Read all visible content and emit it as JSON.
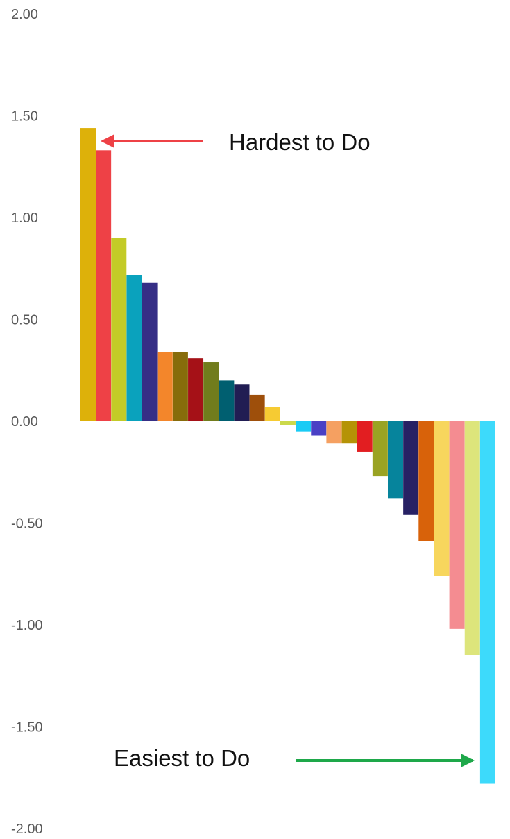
{
  "chart_data": {
    "type": "bar",
    "title": "",
    "xlabel": "",
    "ylabel": "",
    "ylim": [
      -2.0,
      2.0
    ],
    "y_ticks": [
      "2.00",
      "1.50",
      "1.00",
      "0.50",
      "0.00",
      "-0.50",
      "-1.00",
      "-1.50",
      "-2.00"
    ],
    "y_tick_values": [
      2.0,
      1.5,
      1.0,
      0.5,
      0.0,
      -0.5,
      -1.0,
      -1.5,
      -2.0
    ],
    "grid": false,
    "legend": "none",
    "values": [
      1.44,
      1.33,
      0.9,
      0.72,
      0.68,
      0.34,
      0.34,
      0.31,
      0.29,
      0.2,
      0.18,
      0.13,
      0.07,
      -0.02,
      -0.05,
      -0.07,
      -0.11,
      -0.11,
      -0.15,
      -0.27,
      -0.38,
      -0.46,
      -0.59,
      -0.76,
      -1.02,
      -1.15,
      -1.78
    ],
    "colors": [
      "#DDB10A",
      "#EE4146",
      "#C3CB27",
      "#0AA2BD",
      "#362F86",
      "#F3862B",
      "#876C0B",
      "#A51117",
      "#717C1C",
      "#005F70",
      "#211D53",
      "#9E4F0B",
      "#F6CB33",
      "#CBD94B",
      "#1ACBF5",
      "#4A40C5",
      "#F5A061",
      "#B59306",
      "#E21E21",
      "#9AA323",
      "#06849C",
      "#272164",
      "#D8620A",
      "#F7D65D",
      "#F48C91",
      "#DDE57B",
      "#3DDAFB"
    ],
    "annotations": [
      {
        "text": "Hardest to Do",
        "arrow_color": "#EE4146",
        "points_to_bar": 1
      },
      {
        "text": "Easiest to Do",
        "arrow_color": "#1EA84A",
        "points_to_bar": 26
      }
    ]
  }
}
